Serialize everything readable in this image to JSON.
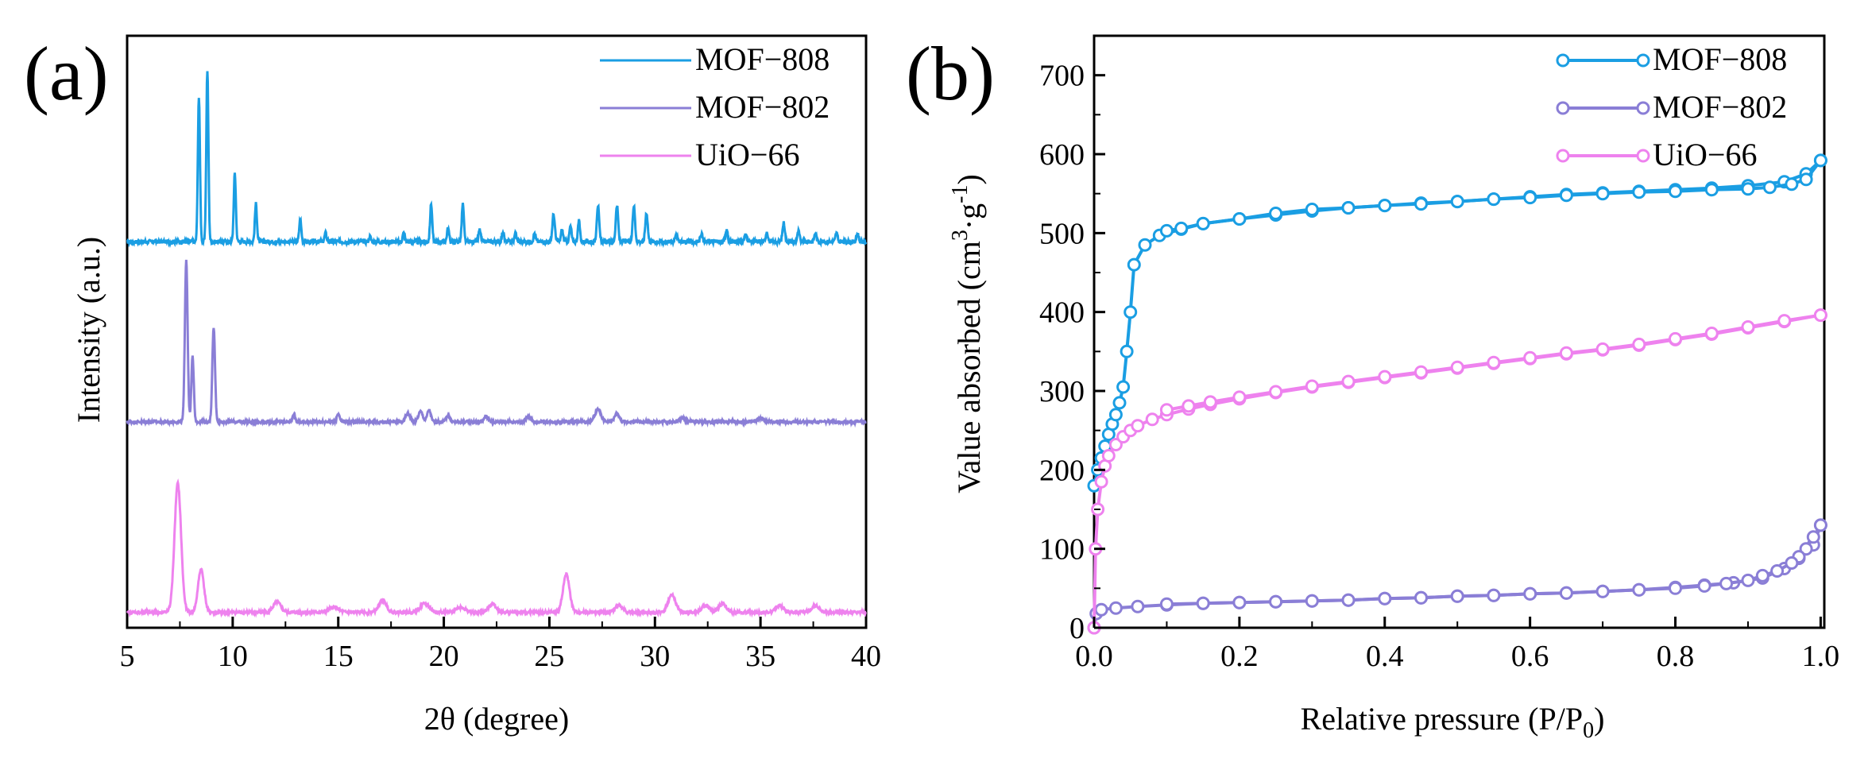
{
  "chart_data": [
    {
      "panel": "(a)",
      "type": "line",
      "xlabel": "2θ (degree)",
      "ylabel": "Intensity (a.u.)",
      "xlim": [
        5,
        40
      ],
      "xticks": [
        5,
        10,
        15,
        20,
        25,
        30,
        35,
        40
      ],
      "xtick_labels": [
        "5",
        "10",
        "15",
        "20",
        "25",
        "30",
        "35",
        "40"
      ],
      "y_ticks_shown": false,
      "legend_position": "top-right",
      "series": [
        {
          "name": "MOF−808",
          "color": "#1a9ee3",
          "baseline": 2.2,
          "noise": 0.012,
          "peaks": [
            [
              8.4,
              0.85,
              0.07
            ],
            [
              8.8,
              1.0,
              0.07
            ],
            [
              10.1,
              0.4,
              0.07
            ],
            [
              11.1,
              0.22,
              0.07
            ],
            [
              13.2,
              0.13,
              0.07
            ],
            [
              14.4,
              0.05,
              0.07
            ],
            [
              16.5,
              0.03,
              0.07
            ],
            [
              18.1,
              0.05,
              0.07
            ],
            [
              19.4,
              0.22,
              0.07
            ],
            [
              20.2,
              0.08,
              0.07
            ],
            [
              20.9,
              0.22,
              0.07
            ],
            [
              21.7,
              0.07,
              0.07
            ],
            [
              22.8,
              0.06,
              0.07
            ],
            [
              23.4,
              0.05,
              0.07
            ],
            [
              24.3,
              0.05,
              0.07
            ],
            [
              25.2,
              0.16,
              0.08
            ],
            [
              25.6,
              0.07,
              0.07
            ],
            [
              26.0,
              0.09,
              0.07
            ],
            [
              26.4,
              0.12,
              0.07
            ],
            [
              27.3,
              0.21,
              0.08
            ],
            [
              28.2,
              0.21,
              0.08
            ],
            [
              29.0,
              0.21,
              0.08
            ],
            [
              29.6,
              0.17,
              0.08
            ],
            [
              31.0,
              0.05,
              0.07
            ],
            [
              32.2,
              0.05,
              0.07
            ],
            [
              33.4,
              0.07,
              0.07
            ],
            [
              34.3,
              0.05,
              0.07
            ],
            [
              35.3,
              0.06,
              0.07
            ],
            [
              36.1,
              0.11,
              0.08
            ],
            [
              36.8,
              0.06,
              0.07
            ],
            [
              37.6,
              0.05,
              0.07
            ],
            [
              38.6,
              0.05,
              0.07
            ],
            [
              39.6,
              0.05,
              0.07
            ]
          ]
        },
        {
          "name": "MOF−802",
          "color": "#8a7ed6",
          "baseline": 1.15,
          "noise": 0.008,
          "peaks": [
            [
              7.8,
              0.95,
              0.09
            ],
            [
              8.1,
              0.38,
              0.08
            ],
            [
              9.1,
              0.55,
              0.09
            ],
            [
              12.9,
              0.04,
              0.1
            ],
            [
              15.0,
              0.04,
              0.1
            ],
            [
              18.3,
              0.05,
              0.15
            ],
            [
              18.9,
              0.06,
              0.15
            ],
            [
              19.3,
              0.07,
              0.12
            ],
            [
              20.2,
              0.04,
              0.12
            ],
            [
              22.0,
              0.03,
              0.15
            ],
            [
              24.0,
              0.03,
              0.15
            ],
            [
              27.3,
              0.07,
              0.2
            ],
            [
              28.2,
              0.05,
              0.15
            ],
            [
              31.3,
              0.02,
              0.2
            ],
            [
              35.0,
              0.02,
              0.2
            ]
          ]
        },
        {
          "name": "UiO−66",
          "color": "#ee82ee",
          "baseline": 0.04,
          "noise": 0.008,
          "peaks": [
            [
              7.4,
              0.75,
              0.22
            ],
            [
              8.5,
              0.25,
              0.2
            ],
            [
              12.1,
              0.06,
              0.25
            ],
            [
              14.8,
              0.03,
              0.3
            ],
            [
              17.1,
              0.07,
              0.25
            ],
            [
              19.1,
              0.05,
              0.3
            ],
            [
              20.8,
              0.03,
              0.3
            ],
            [
              22.3,
              0.05,
              0.25
            ],
            [
              25.8,
              0.22,
              0.22
            ],
            [
              28.3,
              0.04,
              0.25
            ],
            [
              30.8,
              0.1,
              0.25
            ],
            [
              32.4,
              0.04,
              0.25
            ],
            [
              33.2,
              0.05,
              0.25
            ],
            [
              35.9,
              0.04,
              0.25
            ],
            [
              37.6,
              0.04,
              0.25
            ]
          ]
        }
      ]
    },
    {
      "panel": "(b)",
      "type": "line",
      "xlabel": "Relative pressure (P/P",
      "xlabel_sub": "0",
      "xlabel_end": ")",
      "ylabel": "Value absorbed (cm",
      "ylabel_sup3": "3",
      "ylabel_mid": "·g",
      "ylabel_supneg": "-1",
      "ylabel_end": ")",
      "xlim": [
        0,
        1.0
      ],
      "ylim": [
        0,
        750
      ],
      "xticks": [
        0.0,
        0.2,
        0.4,
        0.6,
        0.8,
        1.0
      ],
      "xtick_labels": [
        "0.0",
        "0.2",
        "0.4",
        "0.6",
        "0.8",
        "1.0"
      ],
      "yticks": [
        0,
        100,
        200,
        300,
        400,
        500,
        600,
        700
      ],
      "ytick_labels": [
        "0",
        "100",
        "200",
        "300",
        "400",
        "500",
        "600",
        "700"
      ],
      "legend_position": "top-right",
      "series": [
        {
          "name": "MOF−808",
          "color": "#1a9ee3",
          "adsorption": [
            [
              0.0,
              180
            ],
            [
              0.005,
              200
            ],
            [
              0.01,
              215
            ],
            [
              0.015,
              230
            ],
            [
              0.02,
              245
            ],
            [
              0.025,
              258
            ],
            [
              0.03,
              270
            ],
            [
              0.035,
              285
            ],
            [
              0.04,
              305
            ],
            [
              0.045,
              350
            ],
            [
              0.05,
              400
            ],
            [
              0.055,
              460
            ],
            [
              0.07,
              485
            ],
            [
              0.09,
              497
            ],
            [
              0.12,
              505
            ],
            [
              0.15,
              512
            ],
            [
              0.2,
              518
            ],
            [
              0.25,
              523
            ],
            [
              0.3,
              528
            ],
            [
              0.35,
              532
            ],
            [
              0.4,
              535
            ],
            [
              0.45,
              538
            ],
            [
              0.5,
              540
            ],
            [
              0.55,
              543
            ],
            [
              0.6,
              546
            ],
            [
              0.65,
              549
            ],
            [
              0.7,
              551
            ],
            [
              0.75,
              553
            ],
            [
              0.8,
              555
            ],
            [
              0.85,
              557
            ],
            [
              0.9,
              560
            ],
            [
              0.95,
              565
            ],
            [
              0.98,
              575
            ],
            [
              1.0,
              592
            ]
          ],
          "desorption": [
            [
              1.0,
              592
            ],
            [
              0.98,
              568
            ],
            [
              0.96,
              562
            ],
            [
              0.93,
              558
            ],
            [
              0.9,
              556
            ],
            [
              0.85,
              555
            ],
            [
              0.8,
              553
            ],
            [
              0.75,
              552
            ],
            [
              0.7,
              550
            ],
            [
              0.65,
              548
            ],
            [
              0.6,
              545
            ],
            [
              0.55,
              543
            ],
            [
              0.5,
              540
            ],
            [
              0.45,
              537
            ],
            [
              0.4,
              535
            ],
            [
              0.35,
              532
            ],
            [
              0.3,
              530
            ],
            [
              0.25,
              525
            ],
            [
              0.2,
              518
            ],
            [
              0.15,
              512
            ],
            [
              0.12,
              506
            ],
            [
              0.1,
              503
            ]
          ]
        },
        {
          "name": "MOF−802",
          "color": "#8a7ed6",
          "adsorption": [
            [
              0.0,
              0
            ],
            [
              0.003,
              18
            ],
            [
              0.01,
              23
            ],
            [
              0.03,
              25
            ],
            [
              0.06,
              27
            ],
            [
              0.1,
              29
            ],
            [
              0.15,
              31
            ],
            [
              0.2,
              32
            ],
            [
              0.25,
              33
            ],
            [
              0.3,
              34
            ],
            [
              0.35,
              35
            ],
            [
              0.4,
              37
            ],
            [
              0.45,
              38
            ],
            [
              0.5,
              40
            ],
            [
              0.55,
              41
            ],
            [
              0.6,
              43
            ],
            [
              0.65,
              44
            ],
            [
              0.7,
              46
            ],
            [
              0.75,
              48
            ],
            [
              0.8,
              51
            ],
            [
              0.84,
              54
            ],
            [
              0.88,
              57
            ],
            [
              0.92,
              63
            ],
            [
              0.95,
              75
            ],
            [
              0.97,
              88
            ],
            [
              0.99,
              105
            ],
            [
              1.0,
              130
            ]
          ],
          "desorption": [
            [
              1.0,
              130
            ],
            [
              0.99,
              115
            ],
            [
              0.98,
              100
            ],
            [
              0.97,
              90
            ],
            [
              0.96,
              82
            ],
            [
              0.94,
              72
            ],
            [
              0.92,
              66
            ],
            [
              0.9,
              60
            ],
            [
              0.87,
              56
            ],
            [
              0.84,
              53
            ],
            [
              0.8,
              50
            ],
            [
              0.75,
              48
            ],
            [
              0.7,
              46
            ],
            [
              0.65,
              44
            ],
            [
              0.6,
              43
            ],
            [
              0.55,
              41
            ],
            [
              0.5,
              40
            ],
            [
              0.45,
              38
            ],
            [
              0.4,
              37
            ],
            [
              0.35,
              35
            ],
            [
              0.3,
              34
            ],
            [
              0.25,
              33
            ],
            [
              0.2,
              32
            ],
            [
              0.15,
              31
            ],
            [
              0.1,
              30
            ]
          ]
        },
        {
          "name": "UiO−66",
          "color": "#ee82ee",
          "adsorption": [
            [
              0.0,
              0
            ],
            [
              0.002,
              100
            ],
            [
              0.005,
              150
            ],
            [
              0.01,
              185
            ],
            [
              0.015,
              205
            ],
            [
              0.02,
              218
            ],
            [
              0.03,
              232
            ],
            [
              0.04,
              242
            ],
            [
              0.05,
              250
            ],
            [
              0.06,
              256
            ],
            [
              0.08,
              264
            ],
            [
              0.1,
              270
            ],
            [
              0.13,
              277
            ],
            [
              0.16,
              283
            ],
            [
              0.2,
              290
            ],
            [
              0.25,
              298
            ],
            [
              0.3,
              305
            ],
            [
              0.35,
              311
            ],
            [
              0.4,
              317
            ],
            [
              0.45,
              323
            ],
            [
              0.5,
              329
            ],
            [
              0.55,
              335
            ],
            [
              0.6,
              341
            ],
            [
              0.65,
              347
            ],
            [
              0.7,
              352
            ],
            [
              0.75,
              358
            ],
            [
              0.8,
              365
            ],
            [
              0.85,
              372
            ],
            [
              0.9,
              380
            ],
            [
              0.95,
              388
            ],
            [
              1.0,
              396
            ]
          ],
          "desorption": [
            [
              1.0,
              396
            ],
            [
              0.95,
              389
            ],
            [
              0.9,
              381
            ],
            [
              0.85,
              373
            ],
            [
              0.8,
              366
            ],
            [
              0.75,
              359
            ],
            [
              0.7,
              353
            ],
            [
              0.65,
              348
            ],
            [
              0.6,
              342
            ],
            [
              0.55,
              336
            ],
            [
              0.5,
              330
            ],
            [
              0.45,
              324
            ],
            [
              0.4,
              318
            ],
            [
              0.35,
              312
            ],
            [
              0.3,
              306
            ],
            [
              0.25,
              299
            ],
            [
              0.2,
              292
            ],
            [
              0.16,
              286
            ],
            [
              0.13,
              281
            ],
            [
              0.1,
              276
            ]
          ]
        }
      ]
    }
  ]
}
